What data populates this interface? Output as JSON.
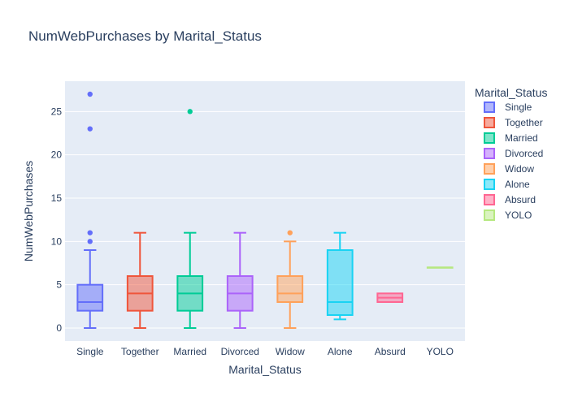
{
  "chart_data": {
    "type": "box",
    "title": "NumWebPurchases by Marital_Status",
    "xlabel": "Marital_Status",
    "ylabel": "NumWebPurchases",
    "ylim": [
      -1.5,
      28.5
    ],
    "yticks": [
      0,
      5,
      10,
      15,
      20,
      25
    ],
    "grid": true,
    "legend_title": "Marital_Status",
    "legend_position": "right",
    "series": [
      {
        "name": "Single",
        "color": "#636efa",
        "lower_whisker": 0,
        "q1": 2,
        "median": 3,
        "q3": 5,
        "upper_whisker": 9,
        "outliers": [
          10,
          11,
          23,
          27
        ]
      },
      {
        "name": "Together",
        "color": "#EF553B",
        "lower_whisker": 0,
        "q1": 2,
        "median": 4,
        "q3": 6,
        "upper_whisker": 11,
        "outliers": []
      },
      {
        "name": "Married",
        "color": "#00cc96",
        "lower_whisker": 0,
        "q1": 2,
        "median": 4,
        "q3": 6,
        "upper_whisker": 11,
        "outliers": [
          25
        ]
      },
      {
        "name": "Divorced",
        "color": "#ab63fa",
        "lower_whisker": 0,
        "q1": 2,
        "median": 4,
        "q3": 6,
        "upper_whisker": 11,
        "outliers": []
      },
      {
        "name": "Widow",
        "color": "#FFA15A",
        "lower_whisker": 0,
        "q1": 3,
        "median": 4,
        "q3": 6,
        "upper_whisker": 10,
        "outliers": [
          11
        ]
      },
      {
        "name": "Alone",
        "color": "#19d3f3",
        "lower_whisker": 1,
        "q1": 1.5,
        "median": 3,
        "q3": 9,
        "upper_whisker": 11,
        "outliers": []
      },
      {
        "name": "Absurd",
        "color": "#FF6692",
        "lower_whisker": 3,
        "q1": 3,
        "median": 3.5,
        "q3": 4,
        "upper_whisker": 4,
        "outliers": []
      },
      {
        "name": "YOLO",
        "color": "#B6E880",
        "lower_whisker": 7,
        "q1": 7,
        "median": 7,
        "q3": 7,
        "upper_whisker": 7,
        "outliers": []
      }
    ]
  }
}
